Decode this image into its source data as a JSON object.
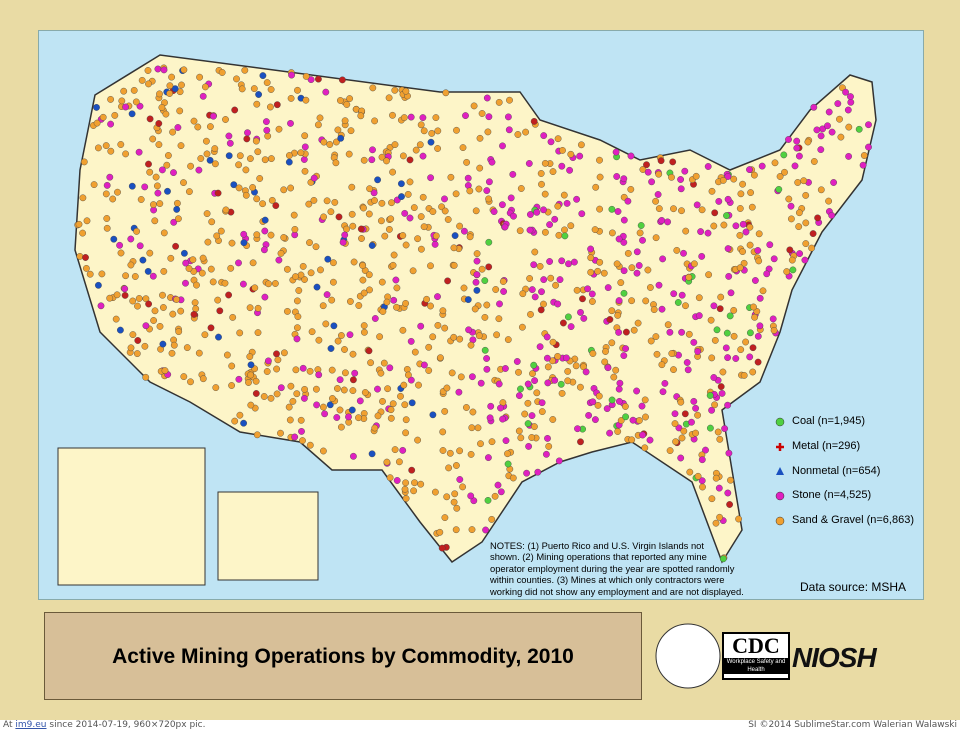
{
  "legend": [
    "Coal (n=1,945)",
    "Metal (n=296)",
    "Nonmetal (n=654)",
    "Stone (n=4,525)",
    "Sand & Gravel (n=6,863)"
  ],
  "notes": [
    "NOTES: (1) Puerto Rico and U.S. Virgin Islands not",
    "shown. (2) Mining operations that reported any mine",
    "operator employment during the year are spotted randomly",
    "within counties. (3) Mines at which only contractors were",
    "working did not show any employment and are not displayed."
  ],
  "source": "Data source: MSHA",
  "title": "Active Mining Operations by Commodity, 2010",
  "logos": {
    "cdc": "CDC",
    "cdc_sub": "Workplace Safety and Health",
    "niosh": "NIOSH"
  },
  "footer": {
    "left_prefix": "At",
    "left_link": "im9.eu",
    "left_suffix": "since 2014-07-19, 960×720px pic.",
    "right": "SI ©2014 SublimeStar.com Walerian Walawski"
  }
}
